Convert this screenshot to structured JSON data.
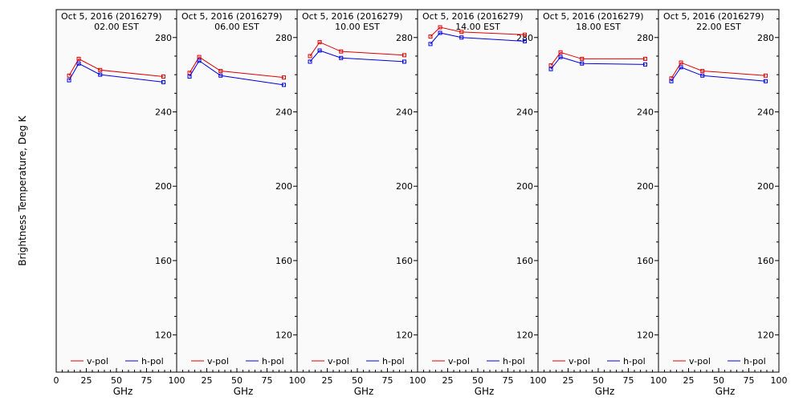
{
  "chart_data": {
    "type": "line",
    "ylabel": "Brightness Temperature, Deg K",
    "ylim": [
      100,
      295
    ],
    "yticks": [
      120,
      160,
      200,
      240,
      280
    ],
    "xlim": [
      0,
      100
    ],
    "xticks": [
      0,
      25,
      50,
      75,
      100
    ],
    "xtick_labels": [
      "0",
      "25",
      "50",
      "75",
      "100"
    ],
    "xlabel": "GHz",
    "legend": [
      {
        "name": "v-pol",
        "color": "#e00000"
      },
      {
        "name": "h-pol",
        "color": "#0000e0"
      }
    ],
    "legend_position": "bottom",
    "panels": [
      {
        "title_line1": "Oct  5, 2016 (2016279)",
        "title_line2": "02.00 EST",
        "x": [
          10.7,
          18.7,
          36.5,
          89.0
        ],
        "series": [
          {
            "name": "v-pol",
            "values": [
              259.5,
              268.5,
              262.5,
              259.0
            ]
          },
          {
            "name": "h-pol",
            "values": [
              257.0,
              266.0,
              260.0,
              256.0
            ]
          }
        ]
      },
      {
        "title_line1": "Oct  5, 2016 (2016279)",
        "title_line2": "06.00 EST",
        "x": [
          10.7,
          18.7,
          36.5,
          89.0
        ],
        "series": [
          {
            "name": "v-pol",
            "values": [
              261.0,
              269.5,
              262.0,
              258.5
            ]
          },
          {
            "name": "h-pol",
            "values": [
              259.0,
              267.5,
              259.5,
              254.5
            ]
          }
        ]
      },
      {
        "title_line1": "Oct  5, 2016 (2016279)",
        "title_line2": "10.00 EST",
        "x": [
          10.7,
          18.7,
          36.5,
          89.0
        ],
        "series": [
          {
            "name": "v-pol",
            "values": [
              270.0,
              277.5,
              272.5,
              270.5
            ]
          },
          {
            "name": "h-pol",
            "values": [
              267.0,
              273.0,
              269.0,
              267.0
            ]
          }
        ]
      },
      {
        "title_line1": "Oct  5, 2016 (2016279)",
        "title_line2": "14.00 EST",
        "x": [
          10.7,
          18.7,
          36.5,
          89.0
        ],
        "series": [
          {
            "name": "v-pol",
            "values": [
              280.5,
              285.5,
              283.0,
              281.5
            ]
          },
          {
            "name": "h-pol",
            "values": [
              276.5,
              282.5,
              280.0,
              278.0
            ]
          }
        ]
      },
      {
        "title_line1": "Oct  5, 2016 (2016279)",
        "title_line2": "18.00 EST",
        "x": [
          10.7,
          18.7,
          36.5,
          89.0
        ],
        "series": [
          {
            "name": "v-pol",
            "values": [
              265.0,
              272.0,
              268.5,
              268.5
            ]
          },
          {
            "name": "h-pol",
            "values": [
              263.0,
              269.5,
              266.0,
              265.5
            ]
          }
        ]
      },
      {
        "title_line1": "Oct  5, 2016 (2016279)",
        "title_line2": "22.00 EST",
        "x": [
          10.7,
          18.7,
          36.5,
          89.0
        ],
        "series": [
          {
            "name": "v-pol",
            "values": [
              258.0,
              266.5,
              262.0,
              259.5
            ]
          },
          {
            "name": "h-pol",
            "values": [
              256.5,
              264.0,
              259.5,
              256.5
            ]
          }
        ]
      }
    ]
  }
}
